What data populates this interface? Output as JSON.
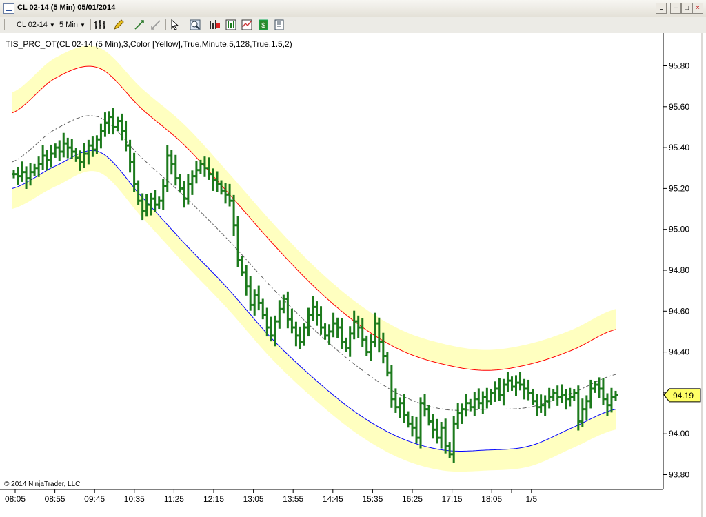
{
  "window": {
    "title": "CL 02-14 (5 Min)  05/01/2014",
    "buttons": {
      "restore": "L",
      "minimize": "–",
      "maximize": "□",
      "close": "×"
    }
  },
  "toolbar": {
    "instrument": "CL 02-14",
    "interval": "5 Min",
    "icons": [
      "bar-style-icon",
      "pencil-icon",
      "zoom-in-icon",
      "zoom-out-icon",
      "cursor-icon",
      "search-icon",
      "data-box-icon",
      "indicators-icon",
      "strategies-icon",
      "dollar-icon",
      "properties-icon"
    ]
  },
  "indicator_label": "TIS_PRC_OT(CL 02-14 (5 Min),3,Color [Yellow],True,Minute,5,128,True,1.5,2)",
  "copyright": "© 2014 NinjaTrader, LLC",
  "price_marker": "94.19",
  "colors": {
    "bars": "#1c7a1c",
    "upper_band": "#ff0000",
    "lower_band": "#0000ff",
    "band_fill": "#ffffc0",
    "mid_line": "#606060",
    "marker": "#ffff66"
  },
  "chart_data": {
    "type": "line",
    "x_tick_labels": [
      "08:05",
      "08:55",
      "09:45",
      "10:35",
      "11:25",
      "12:15",
      "13:05",
      "13:55",
      "14:45",
      "15:35",
      "16:25",
      "17:15",
      "18:05",
      "1/5"
    ],
    "y_tick_labels": [
      "95.80",
      "95.60",
      "95.40",
      "95.20",
      "95.00",
      "94.80",
      "94.60",
      "94.40",
      "94.20",
      "94.00",
      "93.80"
    ],
    "ylim": [
      93.75,
      95.92
    ],
    "grid": false,
    "series": [
      {
        "role": "midline",
        "style": "dash-dot",
        "x": [
          "08:05",
          "08:55",
          "09:45",
          "10:35",
          "11:25",
          "12:15",
          "13:05",
          "13:55",
          "14:45",
          "15:35",
          "16:25",
          "17:15",
          "18:05",
          "1/5",
          "1/5+"
        ],
        "values": [
          95.33,
          95.49,
          95.55,
          95.35,
          95.16,
          94.95,
          94.72,
          94.51,
          94.33,
          94.19,
          94.12,
          94.12,
          94.13,
          94.2,
          94.29
        ]
      },
      {
        "role": "upper-band",
        "color": "#ff0000",
        "x": [
          "08:05",
          "08:55",
          "09:45",
          "10:35",
          "11:25",
          "12:15",
          "13:05",
          "13:55",
          "14:45",
          "15:35",
          "16:25",
          "17:15",
          "18:05",
          "1/5",
          "1/5+"
        ],
        "values": [
          95.57,
          95.74,
          95.79,
          95.59,
          95.41,
          95.18,
          94.94,
          94.72,
          94.54,
          94.41,
          94.34,
          94.31,
          94.34,
          94.41,
          94.51
        ]
      },
      {
        "role": "lower-band",
        "color": "#0000ff",
        "x": [
          "08:05",
          "08:55",
          "09:45",
          "10:35",
          "11:25",
          "12:15",
          "13:05",
          "13:55",
          "14:45",
          "15:35",
          "16:25",
          "17:15",
          "18:05",
          "1/5",
          "1/5+"
        ],
        "values": [
          95.2,
          95.31,
          95.38,
          95.16,
          94.93,
          94.71,
          94.47,
          94.27,
          94.1,
          93.98,
          93.92,
          93.92,
          93.94,
          94.03,
          94.12
        ]
      },
      {
        "role": "price-close",
        "values": [
          95.27,
          95.26,
          95.28,
          95.25,
          95.28,
          95.3,
          95.32,
          95.36,
          95.34,
          95.37,
          95.4,
          95.38,
          95.42,
          95.4,
          95.38,
          95.35,
          95.33,
          95.37,
          95.41,
          95.39,
          95.44,
          95.48,
          95.52,
          95.55,
          95.5,
          95.53,
          95.48,
          95.41,
          95.33,
          95.22,
          95.14,
          95.09,
          95.12,
          95.15,
          95.12,
          95.14,
          95.21,
          95.36,
          95.32,
          95.25,
          95.2,
          95.15,
          95.22,
          95.26,
          95.29,
          95.32,
          95.3,
          95.27,
          95.24,
          95.22,
          95.19,
          95.17,
          95.14,
          95.02,
          94.85,
          94.79,
          94.72,
          94.63,
          94.68,
          94.64,
          94.58,
          94.52,
          94.48,
          94.55,
          94.61,
          94.66,
          94.56,
          94.52,
          94.48,
          94.45,
          94.52,
          94.58,
          94.62,
          94.58,
          94.52,
          94.48,
          94.5,
          94.54,
          94.52,
          94.45,
          94.42,
          94.49,
          94.55,
          94.52,
          94.46,
          94.4,
          94.45,
          94.54,
          94.45,
          94.38,
          94.3,
          94.17,
          94.13,
          94.15,
          94.09,
          94.05,
          94.03,
          93.98,
          94.15,
          94.12,
          94.06,
          94.02,
          93.98,
          94.03,
          93.94,
          93.9,
          94.05,
          94.1,
          94.12,
          94.15,
          94.13,
          94.17,
          94.15,
          94.18,
          94.16,
          94.2,
          94.22,
          94.19,
          94.24,
          94.26,
          94.23,
          94.25,
          94.24,
          94.22,
          94.2,
          94.16,
          94.13,
          94.14,
          94.16,
          94.18,
          94.2,
          94.18,
          94.19,
          94.17,
          94.18,
          94.2,
          94.06,
          94.12,
          94.16,
          94.22,
          94.24,
          94.22,
          94.17,
          94.14,
          94.18,
          94.19
        ]
      }
    ]
  }
}
